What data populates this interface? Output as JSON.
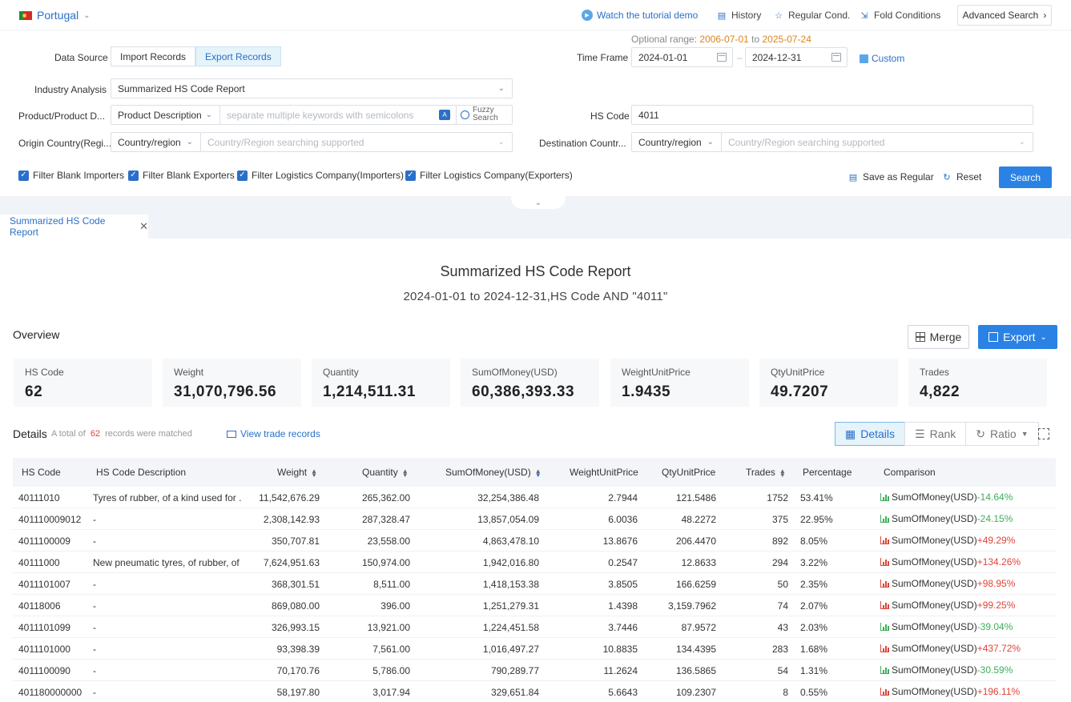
{
  "top": {
    "country": "Portugal",
    "tutorial": "Watch the tutorial demo",
    "history": "History",
    "regular": "Regular Cond.",
    "fold": "Fold Conditions",
    "advanced": "Advanced Search"
  },
  "form": {
    "optional_label": "Optional range:",
    "optional_from": "2006-07-01",
    "optional_to_word": "to",
    "optional_to": "2025-07-24",
    "data_source_label": "Data Source",
    "import_label": "Import Records",
    "export_label": "Export Records",
    "time_frame_label": "Time Frame",
    "date_from": "2024-01-01",
    "date_sep": "–",
    "date_to": "2024-12-31",
    "custom_label": "Custom",
    "industry_label": "Industry Analysis",
    "industry_value": "Summarized HS Code Report",
    "product_label": "Product/Product D...",
    "product_type": "Product Description",
    "keyword_placeholder": "separate multiple keywords with semicolons",
    "fuzzy_1": "Fuzzy",
    "fuzzy_2": "Search",
    "hs_label": "HS Code",
    "hs_value": "4011",
    "origin_label": "Origin Country(Regi...",
    "origin_type": "Country/region",
    "origin_placeholder": "Country/Region searching supported",
    "dest_label": "Destination Countr...",
    "dest_type": "Country/region",
    "dest_placeholder": "Country/Region searching supported",
    "filters": [
      "Filter Blank Importers",
      "Filter Blank Exporters",
      "Filter Logistics Company(Importers)",
      "Filter Logistics Company(Exporters)"
    ],
    "save_regular": "Save as Regular",
    "reset": "Reset",
    "search": "Search"
  },
  "tab": {
    "label": "Summarized HS Code Report"
  },
  "report": {
    "title": "Summarized HS Code Report",
    "subtitle": "2024-01-01 to 2024-12-31,HS Code AND \"4011\"",
    "overview": "Overview",
    "merge": "Merge",
    "export": "Export",
    "stats": [
      {
        "label": "HS Code",
        "value": "62"
      },
      {
        "label": "Weight",
        "value": "31,070,796.56"
      },
      {
        "label": "Quantity",
        "value": "1,214,511.31"
      },
      {
        "label": "SumOfMoney(USD)",
        "value": "60,386,393.33"
      },
      {
        "label": "WeightUnitPrice",
        "value": "1.9435"
      },
      {
        "label": "QtyUnitPrice",
        "value": "49.7207"
      },
      {
        "label": "Trades",
        "value": "4,822"
      }
    ],
    "details": "Details",
    "count_pre": "A total of",
    "count": "62",
    "count_post": "records were matched",
    "view_link": "View trade records",
    "view_tabs": [
      "Details",
      "Rank",
      "Ratio"
    ]
  },
  "table": {
    "headers": [
      "HS Code",
      "HS Code Description",
      "Weight",
      "Quantity",
      "SumOfMoney(USD)",
      "WeightUnitPrice",
      "QtyUnitPrice",
      "Trades",
      "Percentage",
      "Comparison"
    ],
    "rows": [
      {
        "code": "40111010",
        "desc": "Tyres of rubber, of a kind used for ...",
        "weight": "11,542,676.29",
        "qty": "265,362.00",
        "sum": "32,254,386.48",
        "wup": "2.7944",
        "qup": "121.5486",
        "trades": "1752",
        "pct": "53.41%",
        "cmp_label": "SumOfMoney(USD)",
        "cmp": "-14.64%",
        "dir": "down"
      },
      {
        "code": "401110009012",
        "desc": "-",
        "weight": "2,308,142.93",
        "qty": "287,328.47",
        "sum": "13,857,054.09",
        "wup": "6.0036",
        "qup": "48.2272",
        "trades": "375",
        "pct": "22.95%",
        "cmp_label": "SumOfMoney(USD)",
        "cmp": "-24.15%",
        "dir": "down"
      },
      {
        "code": "4011100009",
        "desc": "-",
        "weight": "350,707.81",
        "qty": "23,558.00",
        "sum": "4,863,478.10",
        "wup": "13.8676",
        "qup": "206.4470",
        "trades": "892",
        "pct": "8.05%",
        "cmp_label": "SumOfMoney(USD)",
        "cmp": "+49.29%",
        "dir": "up"
      },
      {
        "code": "40111000",
        "desc": "New pneumatic tyres, of rubber, of ...",
        "weight": "7,624,951.63",
        "qty": "150,974.00",
        "sum": "1,942,016.80",
        "wup": "0.2547",
        "qup": "12.8633",
        "trades": "294",
        "pct": "3.22%",
        "cmp_label": "SumOfMoney(USD)",
        "cmp": "+134.26%",
        "dir": "up"
      },
      {
        "code": "4011101007",
        "desc": "-",
        "weight": "368,301.51",
        "qty": "8,511.00",
        "sum": "1,418,153.38",
        "wup": "3.8505",
        "qup": "166.6259",
        "trades": "50",
        "pct": "2.35%",
        "cmp_label": "SumOfMoney(USD)",
        "cmp": "+98.95%",
        "dir": "up"
      },
      {
        "code": "40118006",
        "desc": "-",
        "weight": "869,080.00",
        "qty": "396.00",
        "sum": "1,251,279.31",
        "wup": "1.4398",
        "qup": "3,159.7962",
        "trades": "74",
        "pct": "2.07%",
        "cmp_label": "SumOfMoney(USD)",
        "cmp": "+99.25%",
        "dir": "up"
      },
      {
        "code": "4011101099",
        "desc": "-",
        "weight": "326,993.15",
        "qty": "13,921.00",
        "sum": "1,224,451.58",
        "wup": "3.7446",
        "qup": "87.9572",
        "trades": "43",
        "pct": "2.03%",
        "cmp_label": "SumOfMoney(USD)",
        "cmp": "-39.04%",
        "dir": "down"
      },
      {
        "code": "4011101000",
        "desc": "-",
        "weight": "93,398.39",
        "qty": "7,561.00",
        "sum": "1,016,497.27",
        "wup": "10.8835",
        "qup": "134.4395",
        "trades": "283",
        "pct": "1.68%",
        "cmp_label": "SumOfMoney(USD)",
        "cmp": "+437.72%",
        "dir": "up"
      },
      {
        "code": "4011100090",
        "desc": "-",
        "weight": "70,170.76",
        "qty": "5,786.00",
        "sum": "790,289.77",
        "wup": "11.2624",
        "qup": "136.5865",
        "trades": "54",
        "pct": "1.31%",
        "cmp_label": "SumOfMoney(USD)",
        "cmp": "-30.59%",
        "dir": "down"
      },
      {
        "code": "401180000000",
        "desc": "-",
        "weight": "58,197.80",
        "qty": "3,017.94",
        "sum": "329,651.84",
        "wup": "5.6643",
        "qup": "109.2307",
        "trades": "8",
        "pct": "0.55%",
        "cmp_label": "SumOfMoney(USD)",
        "cmp": "+196.11%",
        "dir": "up"
      }
    ]
  }
}
